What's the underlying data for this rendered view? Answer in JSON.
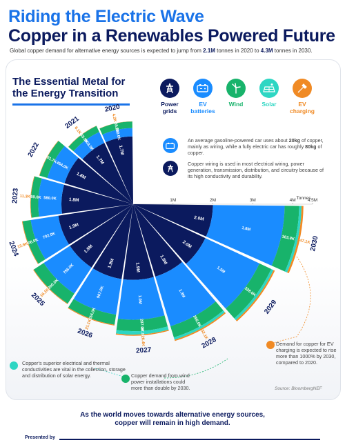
{
  "header": {
    "title_line1": "Riding the Electric Wave",
    "title_line2": "Copper in a Renewables Powered Future",
    "subtitle_pre": "Global copper demand for alternative energy sources is expected to jump from ",
    "subtitle_v1": "2.1M",
    "subtitle_mid": " tonnes in 2020 to ",
    "subtitle_v2": "4.3M",
    "subtitle_post": " tonnes in 2030."
  },
  "section": {
    "title_line1": "The Essential Metal for",
    "title_line2": "the Energy Transition"
  },
  "legend": [
    {
      "label_line1": "Power",
      "label_line2": "grids",
      "color": "#0b1a5e",
      "text_color": "#0b1a5e",
      "icon": "power-tower-icon"
    },
    {
      "label_line1": "EV",
      "label_line2": "batteries",
      "color": "#1a8cff",
      "text_color": "#1a8cff",
      "icon": "battery-icon"
    },
    {
      "label_line1": "Wind",
      "label_line2": "",
      "color": "#18b36b",
      "text_color": "#18b36b",
      "icon": "wind-turbine-icon"
    },
    {
      "label_line1": "Solar",
      "label_line2": "",
      "color": "#2ed6c3",
      "text_color": "#2ed6c3",
      "icon": "solar-panel-icon"
    },
    {
      "label_line1": "EV",
      "label_line2": "charging",
      "color": "#f08a24",
      "text_color": "#f08a24",
      "icon": "ev-charger-icon"
    }
  ],
  "notes": {
    "ev": {
      "pre": "An average gasoline-powered car uses about ",
      "b1": "20kg",
      "mid": " of copper, mainly as wiring, while a fully electric car has roughly ",
      "b2": "80kg",
      "post": " of copper."
    },
    "grid": "Copper wiring is used in most electrical wiring, power generation, transmission, distribution, and circuitry because of its high conductivity and durability.",
    "solar": "Copper's superior electrical and thermal conductivities are vital in the collection, storage and distribution of solar energy.",
    "wind": "Copper demand from wind power installations could more than double by 2030.",
    "charging": "Demand for copper for EV charging is expected to rise more than 1000% by 2030, compared to 2020."
  },
  "source": "Source: BloombergNEF",
  "footer": {
    "line1": "As the world moves towards alternative energy sources,",
    "line2": "copper will remain in high demand.",
    "presented_by": "Presented by"
  },
  "chart_data": {
    "type": "radial-stacked-bar",
    "unit": "Tonnes",
    "axis_ticks": [
      "1M",
      "2M",
      "3M",
      "4M",
      "4.5M"
    ],
    "axis_max": 4500000,
    "tick_values": [
      1000000,
      2000000,
      3000000,
      4000000,
      4500000
    ],
    "colors": [
      "#0b1a5e",
      "#1a8cff",
      "#18b36b",
      "#2ed6c3",
      "#f08a24"
    ],
    "series_names": [
      "Power grids",
      "EV batteries",
      "Wind",
      "Solar",
      "EV charging"
    ],
    "years": [
      {
        "year": "2020",
        "values": [
          1700000,
          210000,
          165800,
          0,
          4200
        ],
        "labels": [
          "1.7M",
          "210.0K",
          "165.8K",
          "",
          "4.2K"
        ]
      },
      {
        "year": "2021",
        "values": [
          1700000,
          303000,
          165900,
          0,
          6100
        ],
        "labels": [
          "1.7M",
          "303.0K",
          "165.9K",
          "",
          "6.1K"
        ]
      },
      {
        "year": "2022",
        "values": [
          1800000,
          454000,
          201700,
          0,
          9000
        ],
        "labels": [
          "1.8M",
          "454.0K",
          "201.7K",
          "",
          ""
        ]
      },
      {
        "year": "2023",
        "values": [
          1800000,
          580000,
          189000,
          0,
          11300
        ],
        "labels": [
          "1.8M",
          "580.0K",
          "189.0K",
          "",
          "11.3K"
        ]
      },
      {
        "year": "2024",
        "values": [
          1900000,
          702000,
          206000,
          0,
          13900
        ],
        "labels": [
          "1.9M",
          "702.0K",
          "206.0K",
          "",
          "13.9K"
        ]
      },
      {
        "year": "2025",
        "values": [
          1900000,
          786000,
          300000,
          0,
          16100
        ],
        "labels": [
          "1.9M",
          "786.0K",
          "300.0K",
          "",
          "16.1K"
        ]
      },
      {
        "year": "2026",
        "values": [
          1900000,
          907000,
          254000,
          0,
          21100
        ],
        "labels": [
          "1.9M",
          "907.0K",
          "254.0K",
          "",
          "21.1K"
        ]
      },
      {
        "year": "2027",
        "values": [
          1900000,
          1000000,
          287000,
          87000,
          26400
        ],
        "labels": [
          "1.9M",
          "1.0M",
          "287.0K",
          "87.0K",
          "26.4K"
        ]
      },
      {
        "year": "2028",
        "values": [
          1900000,
          1300000,
          296000,
          60000,
          32100
        ],
        "labels": [
          "1.9M",
          "1.3M",
          "296.0K",
          "",
          "32.1K"
        ]
      },
      {
        "year": "2029",
        "values": [
          2000000,
          1500000,
          328000,
          60000,
          38000
        ],
        "labels": [
          "2.0M",
          "1.5M",
          "328.0K",
          "",
          ""
        ]
      },
      {
        "year": "2030",
        "values": [
          2000000,
          1800000,
          363800,
          60000,
          47100
        ],
        "labels": [
          "2.0M",
          "1.8M",
          "363.8K",
          "",
          "47.1K"
        ]
      }
    ]
  }
}
